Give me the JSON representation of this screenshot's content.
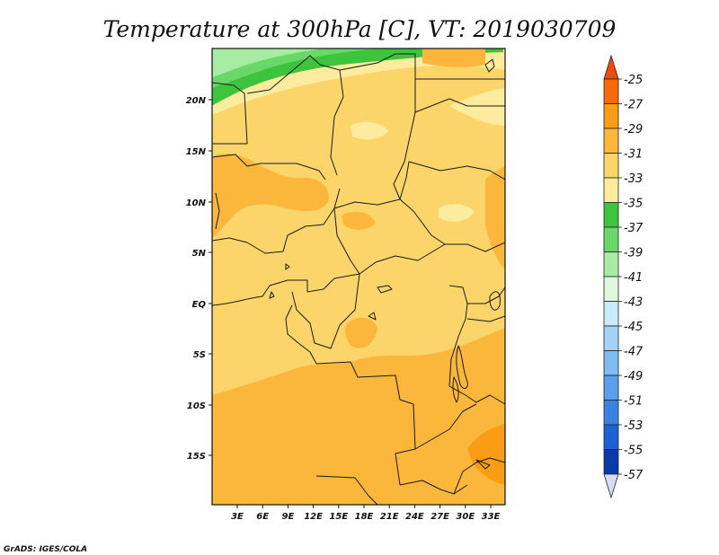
{
  "title": "Temperature at 300hPa [C], VT: 2019030709",
  "credit": "GrADS: IGES/COLA",
  "map": {
    "lat_labels": [
      "20N",
      "15N",
      "10N",
      "5N",
      "EQ",
      "5S",
      "10S",
      "15S"
    ],
    "lon_labels": [
      "3E",
      "6E",
      "9E",
      "12E",
      "15E",
      "18E",
      "21E",
      "24E",
      "27E",
      "30E",
      "33E"
    ]
  },
  "colorbar": {
    "levels": [
      "-25",
      "-27",
      "-29",
      "-31",
      "-33",
      "-35",
      "-37",
      "-39",
      "-41",
      "-43",
      "-45",
      "-47",
      "-49",
      "-51",
      "-53",
      "-55",
      "-57"
    ],
    "colors": {
      "top_arrow": "#f04a0a",
      "bins": [
        "#f86a08",
        "#fa9c14",
        "#fbb73c",
        "#fbd56a",
        "#fdeb9e",
        "#3ec43c",
        "#6ad868",
        "#a6eca2",
        "#def8de",
        "#c8eafa",
        "#a4d2f6",
        "#80baf2",
        "#5a9eec",
        "#3a82e2",
        "#1c62d2",
        "#0a3aa8"
      ],
      "bottom_arrow": "#d6dcf6"
    }
  },
  "field_colors": {
    "m33_35": "#fdeb9e",
    "m31_33": "#fbd56a",
    "m29_31": "#fbb73c",
    "m27_29": "#fa9c14",
    "m35_37": "#3ec43c",
    "m37_39": "#6ad868",
    "m39_41": "#a6eca2"
  }
}
